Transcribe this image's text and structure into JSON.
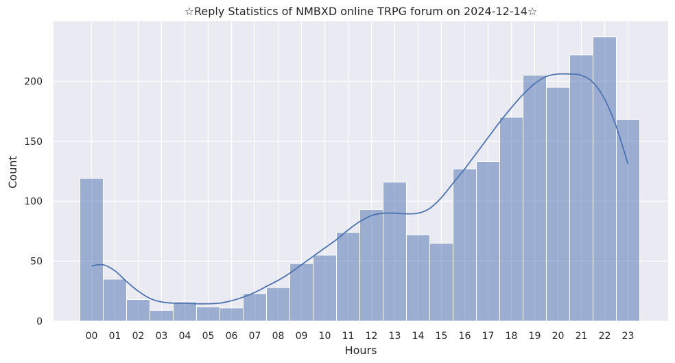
{
  "chart_data": {
    "type": "bar",
    "title": "☆Reply Statistics of NMBXD online TRPG forum on 2024-12-14☆",
    "xlabel": "Hours",
    "ylabel": "Count",
    "categories": [
      "00",
      "01",
      "02",
      "03",
      "04",
      "05",
      "06",
      "07",
      "08",
      "09",
      "10",
      "11",
      "12",
      "13",
      "14",
      "15",
      "16",
      "17",
      "18",
      "19",
      "20",
      "21",
      "22",
      "23"
    ],
    "values": [
      119,
      35,
      18,
      9,
      16,
      12,
      11,
      23,
      28,
      48,
      55,
      74,
      93,
      116,
      72,
      65,
      127,
      133,
      170,
      205,
      195,
      222,
      237,
      168
    ],
    "ylim": [
      0,
      250
    ],
    "yticks": [
      0,
      50,
      100,
      150,
      200
    ],
    "kde": {
      "x": [
        0,
        0.5,
        1,
        1.5,
        2,
        2.5,
        3,
        3.5,
        4,
        4.5,
        5,
        5.5,
        6,
        6.5,
        7,
        7.5,
        8,
        8.5,
        9,
        9.5,
        10,
        10.5,
        11,
        11.5,
        12,
        12.5,
        13,
        13.5,
        14,
        14.5,
        15,
        15.5,
        16,
        16.5,
        17,
        17.5,
        18,
        18.5,
        19,
        19.5,
        20,
        20.5,
        21,
        21.5,
        22,
        22.5,
        23
      ],
      "y": [
        46,
        47,
        42,
        33,
        25,
        19,
        16,
        15,
        15,
        14.5,
        14.5,
        15,
        17,
        20,
        24,
        29,
        34,
        40,
        47,
        54,
        61,
        68,
        76,
        83,
        88,
        90,
        90,
        89.5,
        90,
        94,
        103,
        115,
        127,
        140,
        153,
        166,
        178,
        189,
        198,
        204,
        206,
        206,
        205,
        199,
        185,
        162,
        131
      ]
    },
    "bar_color": "#4c72b0",
    "line_color": "#4c72b0",
    "background": "#eaeaf2",
    "grid": true
  }
}
